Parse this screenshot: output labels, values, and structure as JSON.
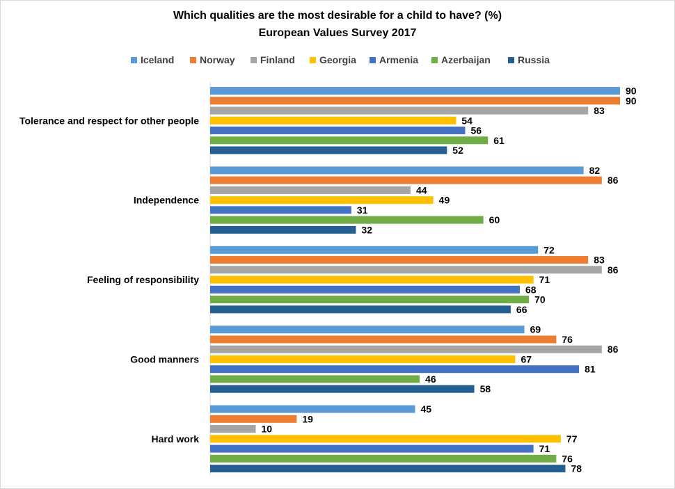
{
  "chart_data": {
    "type": "bar",
    "orientation": "horizontal",
    "title": "Which qualities are the most desirable for a child to have? (%)",
    "subtitle": "European Values Survey 2017",
    "xlabel": "",
    "ylabel": "",
    "xlim": [
      0,
      90
    ],
    "grid": false,
    "legend_position": "top",
    "categories": [
      "Tolerance and respect for other people",
      "Independence",
      "Feeling of responsibility",
      "Good manners",
      "Hard work"
    ],
    "series": [
      {
        "name": "Iceland",
        "color": "#5B9BD5",
        "values": [
          90,
          82,
          72,
          69,
          45
        ]
      },
      {
        "name": "Norway",
        "color": "#ED7D31",
        "values": [
          90,
          86,
          83,
          76,
          19
        ]
      },
      {
        "name": "Finland",
        "color": "#A5A5A5",
        "values": [
          83,
          44,
          86,
          86,
          10
        ]
      },
      {
        "name": "Georgia",
        "color": "#FFC000",
        "values": [
          54,
          49,
          71,
          67,
          77
        ]
      },
      {
        "name": "Armenia",
        "color": "#4472C4",
        "values": [
          56,
          31,
          68,
          81,
          71
        ]
      },
      {
        "name": "Azerbaijan",
        "color": "#70AD47",
        "values": [
          61,
          60,
          70,
          46,
          76
        ]
      },
      {
        "name": "Russia",
        "color": "#255E91",
        "values": [
          52,
          32,
          66,
          58,
          78
        ]
      }
    ]
  }
}
